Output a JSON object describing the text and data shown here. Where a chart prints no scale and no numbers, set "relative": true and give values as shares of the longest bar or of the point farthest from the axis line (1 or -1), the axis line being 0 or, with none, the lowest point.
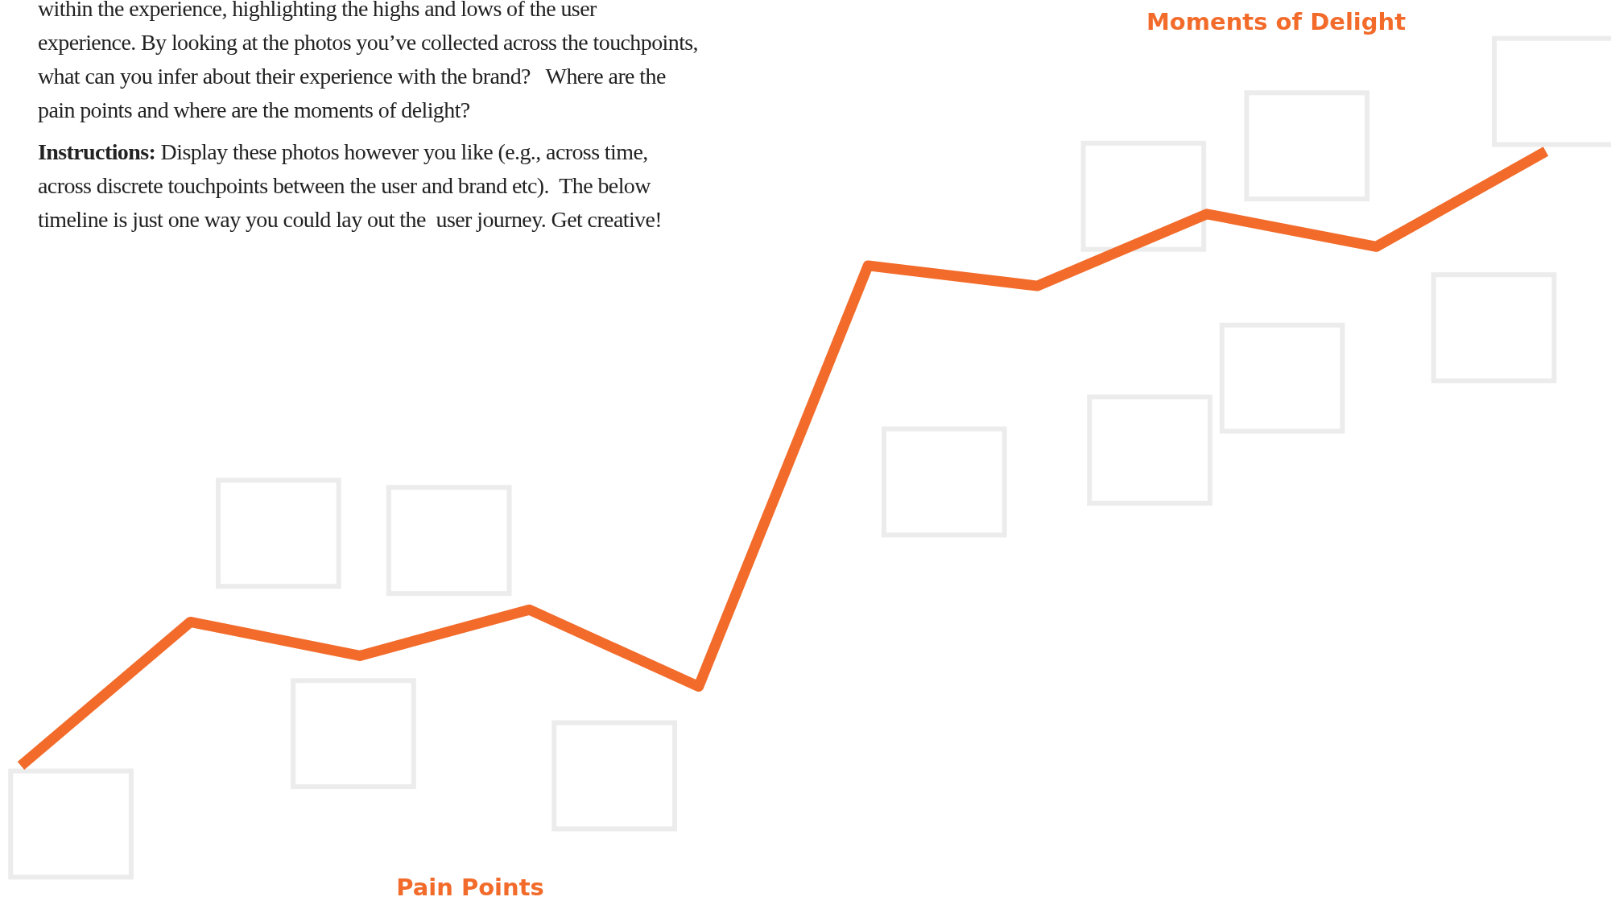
{
  "chart_data": {
    "type": "line",
    "relative": true,
    "categories": [
      null,
      null,
      null,
      null,
      null,
      null,
      null,
      null,
      null,
      null
    ],
    "series": [
      {
        "color": "#f26b2a",
        "values": [
          0,
          0.234,
          0.179,
          0.254,
          0.129,
          0.814,
          0.781,
          0.898,
          0.845,
          1
        ]
      }
    ],
    "marker": "none",
    "line_style": "solid",
    "annotations": [
      "within the experience, highlighting the highs and lows of the user experience. By looking at the photos you’ve collected across the touchpoints, what can you infer about their experience with the brand?   Where are the pain points and where are the moments of delight?",
      "Instructions: Display these photos however you like (e.g., across time, across discrete touchpoints between the user and brand etc).  The below timeline is just one way you could lay out the  user journey. Get creative!",
      "Moments of Delight",
      "Pain Points"
    ]
  }
}
